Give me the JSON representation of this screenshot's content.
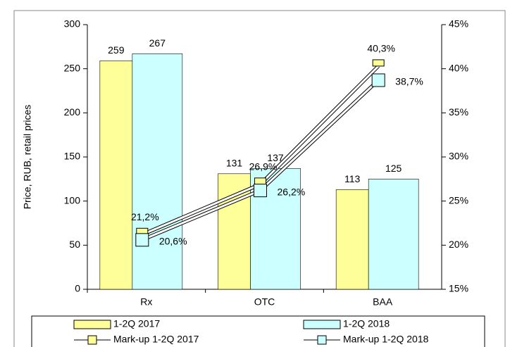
{
  "chart_data": {
    "type": "bar",
    "y_label": "Price, RUB, retail prices",
    "categories": [
      "Rx",
      "OTC",
      "BAA"
    ],
    "series": [
      {
        "name": "1-2Q 2017",
        "color": "#ffff99",
        "type": "bar",
        "values": [
          259,
          131,
          113
        ]
      },
      {
        "name": "1-2Q 2018",
        "color": "#ccffff",
        "type": "bar",
        "values": [
          267,
          137,
          125
        ]
      },
      {
        "name": "Mark-up 1-2Q 2017",
        "color": "#ffff99",
        "type": "line",
        "axis": "y2",
        "values": [
          21.2,
          26.9,
          40.3
        ],
        "value_labels": [
          "21,2%",
          "26,9%",
          "40,3%"
        ]
      },
      {
        "name": "Mark-up 1-2Q 2018",
        "color": "#ccffff",
        "type": "line",
        "axis": "y2",
        "values": [
          20.6,
          26.2,
          38.7
        ],
        "value_labels": [
          "20,6%",
          "26,2%",
          "38,7%"
        ]
      }
    ],
    "ylim": [
      0,
      300
    ],
    "yticks": [
      0,
      50,
      100,
      150,
      200,
      250,
      300
    ],
    "y2lim": [
      15,
      45
    ],
    "y2ticks": [
      {
        "value": 15,
        "label": "15%"
      },
      {
        "value": 20,
        "label": "20%"
      },
      {
        "value": 25,
        "label": "25%"
      },
      {
        "value": 30,
        "label": "30%"
      },
      {
        "value": 35,
        "label": "35%"
      },
      {
        "value": 40,
        "label": "40%"
      },
      {
        "value": 45,
        "label": "45%"
      }
    ],
    "legend": "bottom"
  }
}
